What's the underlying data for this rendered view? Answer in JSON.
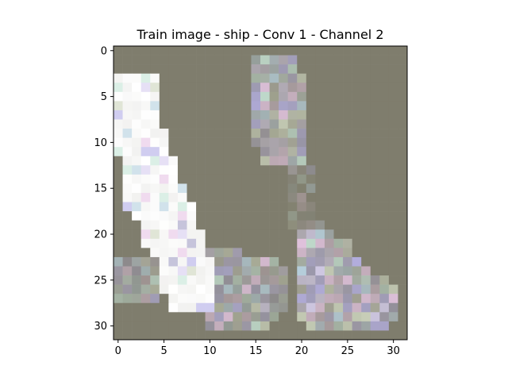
{
  "chart_data": {
    "type": "heatmap",
    "title": "Train image - ship - Conv 1 - Channel 2",
    "xlabel": "",
    "ylabel": "",
    "rows": 32,
    "cols": 32,
    "xlim": [
      -0.5,
      31.5
    ],
    "ylim": [
      31.5,
      -0.5
    ],
    "x_ticks": [
      0,
      5,
      10,
      15,
      20,
      25,
      30
    ],
    "y_ticks": [
      0,
      5,
      10,
      15,
      20,
      25,
      30
    ],
    "base_color": "#7f7d6d",
    "bright_color": "#ffffff",
    "tint_colors": [
      "#b7b2e8",
      "#d8d0f0",
      "#c8e6d8",
      "#e8c8e6",
      "#b8d2e0",
      "#a8a4c8",
      "#cfd7c0"
    ],
    "grid": false,
    "regions": [
      {
        "name": "diagonal-bright-stroke",
        "intensity": 0.95,
        "spans": [
          [
            3,
            0,
            4
          ],
          [
            4,
            0,
            4
          ],
          [
            5,
            0,
            4
          ],
          [
            6,
            0,
            4
          ],
          [
            7,
            0,
            4
          ],
          [
            8,
            0,
            4
          ],
          [
            9,
            0,
            5
          ],
          [
            10,
            0,
            5
          ],
          [
            11,
            0,
            5
          ],
          [
            12,
            1,
            6
          ],
          [
            13,
            1,
            6
          ],
          [
            14,
            1,
            6
          ],
          [
            15,
            1,
            7
          ],
          [
            16,
            1,
            7
          ],
          [
            17,
            1,
            8
          ],
          [
            18,
            2,
            8
          ],
          [
            19,
            3,
            8
          ],
          [
            20,
            3,
            9
          ],
          [
            21,
            3,
            9
          ],
          [
            22,
            4,
            9
          ],
          [
            23,
            5,
            10
          ],
          [
            24,
            5,
            10
          ],
          [
            25,
            5,
            10
          ],
          [
            26,
            5,
            10
          ],
          [
            27,
            6,
            10
          ],
          [
            28,
            6,
            10
          ]
        ]
      },
      {
        "name": "upper-right-patch",
        "intensity": 0.45,
        "spans": [
          [
            1,
            15,
            19
          ],
          [
            2,
            15,
            19
          ],
          [
            3,
            15,
            20
          ],
          [
            4,
            15,
            20
          ],
          [
            5,
            15,
            20
          ],
          [
            6,
            15,
            20
          ],
          [
            7,
            15,
            20
          ],
          [
            8,
            15,
            20
          ],
          [
            9,
            15,
            20
          ],
          [
            10,
            15,
            20
          ],
          [
            11,
            16,
            20
          ],
          [
            12,
            16,
            20
          ]
        ]
      },
      {
        "name": "lower-middle-patch",
        "intensity": 0.4,
        "spans": [
          [
            22,
            10,
            13
          ],
          [
            23,
            10,
            17
          ],
          [
            24,
            10,
            18
          ],
          [
            25,
            9,
            18
          ],
          [
            26,
            9,
            18
          ],
          [
            27,
            9,
            18
          ],
          [
            28,
            9,
            18
          ],
          [
            29,
            10,
            17
          ],
          [
            30,
            10,
            16
          ]
        ]
      },
      {
        "name": "lower-left-patch",
        "intensity": 0.35,
        "spans": [
          [
            23,
            0,
            4
          ],
          [
            24,
            0,
            5
          ],
          [
            25,
            0,
            5
          ],
          [
            26,
            0,
            5
          ],
          [
            27,
            0,
            4
          ]
        ]
      },
      {
        "name": "lower-right-patch",
        "intensity": 0.5,
        "spans": [
          [
            20,
            20,
            23
          ],
          [
            21,
            20,
            25
          ],
          [
            22,
            20,
            25
          ],
          [
            23,
            20,
            26
          ],
          [
            24,
            20,
            27
          ],
          [
            25,
            20,
            29
          ],
          [
            26,
            20,
            30
          ],
          [
            27,
            20,
            30
          ],
          [
            28,
            20,
            30
          ],
          [
            29,
            20,
            30
          ],
          [
            30,
            21,
            29
          ]
        ]
      },
      {
        "name": "faint-vertical-smear",
        "intensity": 0.12,
        "spans": [
          [
            13,
            19,
            21
          ],
          [
            14,
            19,
            21
          ],
          [
            15,
            19,
            21
          ],
          [
            16,
            19,
            21
          ],
          [
            17,
            19,
            21
          ],
          [
            18,
            19,
            21
          ],
          [
            19,
            19,
            22
          ]
        ]
      }
    ]
  }
}
